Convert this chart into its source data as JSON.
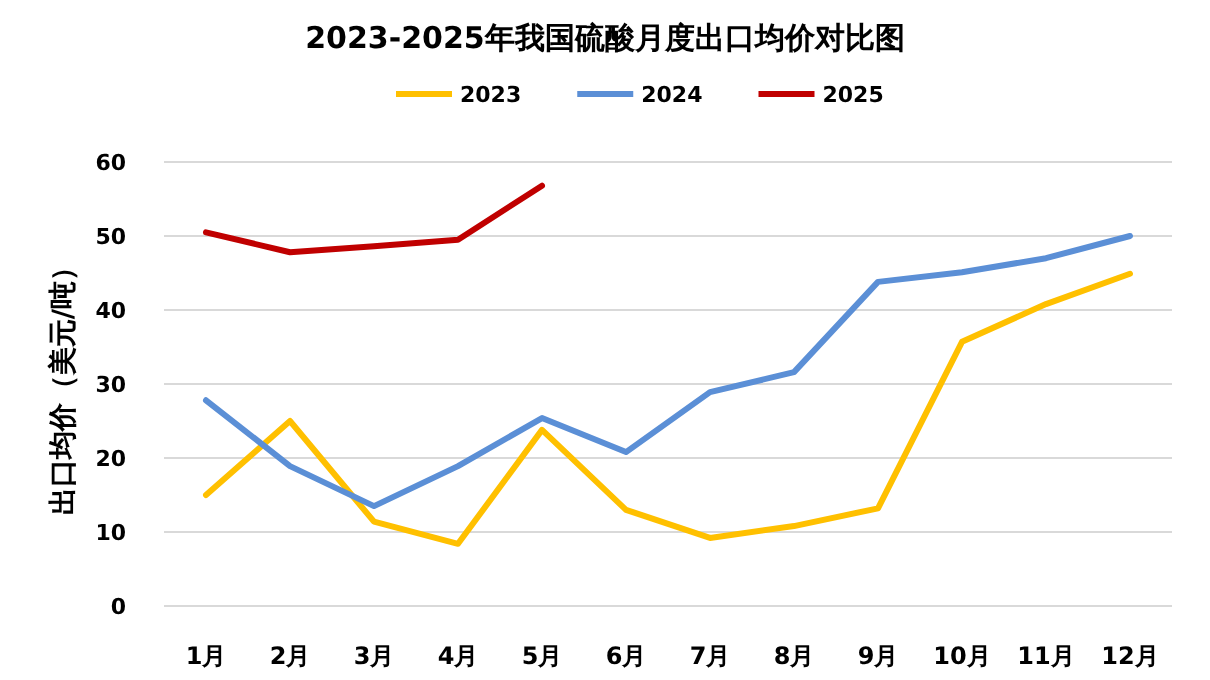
{
  "chart_data": {
    "type": "line",
    "title": "2023-2025年我国硫酸月度出口均价对比图",
    "ylabel": "出口均价（美元/吨）",
    "categories": [
      "1月",
      "2月",
      "3月",
      "4月",
      "5月",
      "6月",
      "7月",
      "8月",
      "9月",
      "10月",
      "11月",
      "12月"
    ],
    "series": [
      {
        "name": "2023",
        "color": "#ffc000",
        "values": [
          15,
          25,
          11.4,
          8.4,
          23.8,
          13,
          9.2,
          10.8,
          13.2,
          35.7,
          40.8,
          44.9
        ]
      },
      {
        "name": "2024",
        "color": "#5b8fd6",
        "values": [
          27.8,
          18.9,
          13.5,
          18.9,
          25.4,
          20.8,
          28.9,
          31.6,
          43.8,
          45.1,
          47,
          50
        ]
      },
      {
        "name": "2025",
        "color": "#c00000",
        "values": [
          50.5,
          47.8,
          48.6,
          49.5,
          56.8,
          null,
          null,
          null,
          null,
          null,
          null,
          null
        ]
      }
    ],
    "ylim": [
      0,
      60
    ],
    "yticks": [
      0,
      10,
      20,
      30,
      40,
      50,
      60
    ],
    "grid": "y",
    "legend": "top",
    "marker": "none",
    "line_style": "solid"
  }
}
